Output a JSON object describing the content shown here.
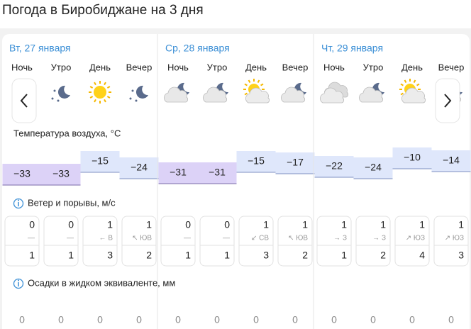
{
  "header": {
    "title": "Погода в Биробиджане на 3 дня"
  },
  "sections": {
    "temperature": "Температура воздуха, °С",
    "wind": "Ветер и порывы, м/с",
    "precipitation": "Осадки в жидком эквиваленте, мм"
  },
  "days": [
    {
      "date": "Вт, 27 января",
      "periods": [
        {
          "name": "Ночь",
          "sky": "night-clear",
          "temperature": -33,
          "temperature_label": "−33",
          "wind": 0,
          "direction": "—",
          "gust": 1,
          "precipitation": 0
        },
        {
          "name": "Утро",
          "sky": "night-clear",
          "temperature": -33,
          "temperature_label": "−33",
          "wind": 0,
          "direction": "—",
          "gust": 1,
          "precipitation": 0
        },
        {
          "name": "День",
          "sky": "clear",
          "temperature": -15,
          "temperature_label": "−15",
          "wind": 1,
          "direction": "← В",
          "gust": 3,
          "precipitation": 0
        },
        {
          "name": "Вечер",
          "sky": "night-clear",
          "temperature": -24,
          "temperature_label": "−24",
          "wind": 1,
          "direction": "↖ ЮВ",
          "gust": 2,
          "precipitation": 0
        }
      ]
    },
    {
      "date": "Ср, 28 января",
      "periods": [
        {
          "name": "Ночь",
          "sky": "night-cloudy",
          "temperature": -31,
          "temperature_label": "−31",
          "wind": 0,
          "direction": "—",
          "gust": 1,
          "precipitation": 0
        },
        {
          "name": "Утро",
          "sky": "night-cloudy",
          "temperature": -31,
          "temperature_label": "−31",
          "wind": 0,
          "direction": "—",
          "gust": 1,
          "precipitation": 0
        },
        {
          "name": "День",
          "sky": "partly-cloudy",
          "temperature": -15,
          "temperature_label": "−15",
          "wind": 1,
          "direction": "↙ СВ",
          "gust": 3,
          "precipitation": 0
        },
        {
          "name": "Вечер",
          "sky": "night-cloudy",
          "temperature": -17,
          "temperature_label": "−17",
          "wind": 1,
          "direction": "↖ ЮВ",
          "gust": 2,
          "precipitation": 0
        }
      ]
    },
    {
      "date": "Чт, 29 января",
      "periods": [
        {
          "name": "Ночь",
          "sky": "cloudy",
          "temperature": -22,
          "temperature_label": "−22",
          "wind": 1,
          "direction": "→ З",
          "gust": 1,
          "precipitation": 0
        },
        {
          "name": "Утро",
          "sky": "night-cloudy",
          "temperature": -24,
          "temperature_label": "−24",
          "wind": 1,
          "direction": "→ З",
          "gust": 2,
          "precipitation": 0
        },
        {
          "name": "День",
          "sky": "partly-cloudy",
          "temperature": -10,
          "temperature_label": "−10",
          "wind": 1,
          "direction": "↗ ЮЗ",
          "gust": 4,
          "precipitation": 0
        },
        {
          "name": "Вечер",
          "sky": "night-cloudy",
          "temperature": -14,
          "temperature_label": "−14",
          "wind": 1,
          "direction": "↗ ЮЗ",
          "gust": 3,
          "precipitation": 0
        }
      ]
    }
  ]
}
